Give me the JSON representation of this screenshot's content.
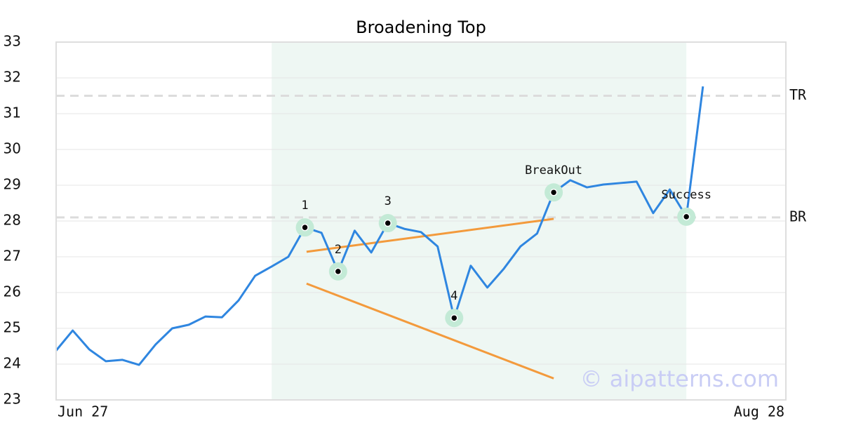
{
  "chart_data": {
    "type": "line",
    "title": "Broadening Top",
    "x": [
      0,
      1,
      2,
      3,
      4,
      5,
      6,
      7,
      8,
      9,
      10,
      11,
      12,
      13,
      14,
      15,
      16,
      17,
      18,
      19,
      20,
      21,
      22,
      23,
      24,
      25,
      26,
      27,
      28,
      29,
      30,
      31,
      32,
      33,
      34,
      35,
      36,
      37,
      38,
      39
    ],
    "series": [
      {
        "color": "#2f86e0",
        "values": [
          24.38,
          24.94,
          24.41,
          24.08,
          24.12,
          23.98,
          24.55,
          25.0,
          25.1,
          25.33,
          25.31,
          25.78,
          26.47,
          26.73,
          27.0,
          27.82,
          27.67,
          26.59,
          27.73,
          27.12,
          27.94,
          27.78,
          27.69,
          27.29,
          25.29,
          26.75,
          26.14,
          26.67,
          27.29,
          27.65,
          28.8,
          29.14,
          28.94,
          29.02,
          29.06,
          29.1,
          28.22,
          28.88,
          28.12,
          31.76
        ]
      }
    ],
    "xlim": [
      0,
      44
    ],
    "xticks": [
      {
        "value": 0,
        "label": "Jun 27"
      },
      {
        "value": 44,
        "label": "Aug 28"
      }
    ],
    "ylim": [
      23,
      33
    ],
    "yticks": [
      23,
      24,
      25,
      26,
      27,
      28,
      29,
      30,
      31,
      32,
      33
    ],
    "grid": true,
    "highlight": {
      "x": [
        13,
        38
      ],
      "color": "#eef7f3"
    },
    "trendlines": [
      {
        "x": [
          15.1,
          30
        ],
        "values": [
          27.14,
          28.06
        ],
        "color": "#f39a3c"
      },
      {
        "x": [
          15.1,
          30
        ],
        "values": [
          26.25,
          23.6
        ],
        "color": "#f39a3c"
      }
    ],
    "levels": [
      {
        "label": "TR",
        "value": 31.5
      },
      {
        "label": "BR",
        "value": 28.1
      }
    ],
    "annotations": [
      {
        "label": "1",
        "x": 15
      },
      {
        "label": "2",
        "x": 17
      },
      {
        "label": "3",
        "x": 20
      },
      {
        "label": "4",
        "x": 24
      },
      {
        "label": "BreakOut",
        "x": 30
      },
      {
        "label": "Success",
        "x": 38
      }
    ],
    "watermark": "© aipatterns.com"
  }
}
